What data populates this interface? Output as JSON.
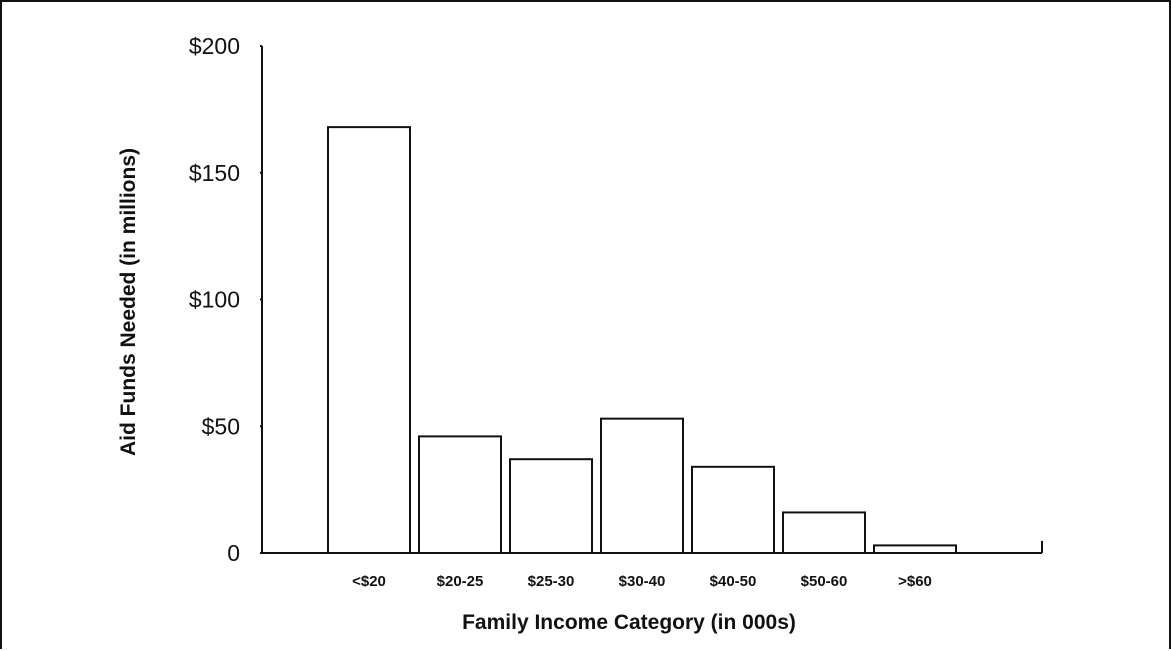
{
  "chart_data": {
    "type": "bar",
    "title": "",
    "xlabel": "Family Income Category (in 000s)",
    "ylabel": "Aid Funds Needed (in millions)",
    "categories": [
      "<$20",
      "$20-25",
      "$25-30",
      "$30-40",
      "$40-50",
      "$50-60",
      ">$60"
    ],
    "values": [
      168,
      46,
      37,
      53,
      34,
      16,
      3
    ],
    "ylim": [
      0,
      200
    ],
    "yticks": [
      0,
      50,
      100,
      150,
      200
    ],
    "ytick_labels": [
      "0",
      "$50",
      "$100",
      "$150",
      "$200"
    ],
    "grid": false,
    "legend": "none",
    "colors": {
      "bar_fill": "#ffffff",
      "bar_stroke": "#111111",
      "axis": "#111111",
      "text": "#111111"
    }
  }
}
